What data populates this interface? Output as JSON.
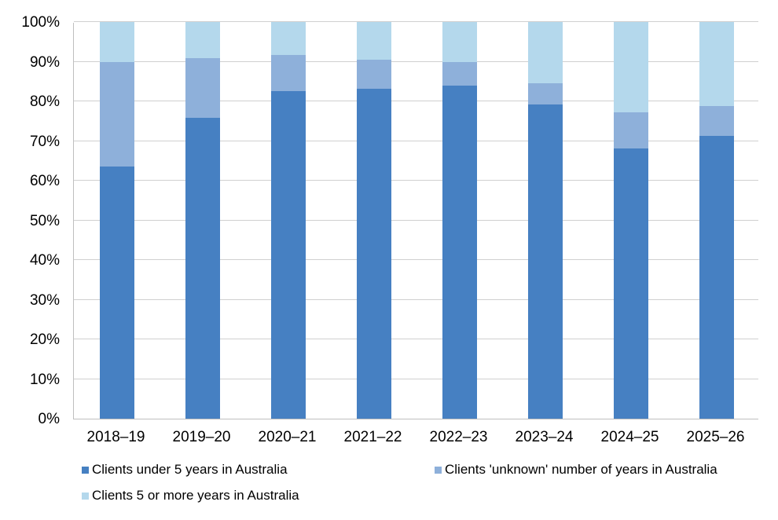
{
  "chart_data": {
    "type": "bar",
    "stacked": true,
    "title": "",
    "xlabel": "",
    "ylabel": "",
    "ylim": [
      0,
      100
    ],
    "y_ticks": [
      "0%",
      "10%",
      "20%",
      "30%",
      "40%",
      "50%",
      "60%",
      "70%",
      "80%",
      "90%",
      "100%"
    ],
    "grid": true,
    "legend_position": "bottom",
    "categories": [
      "2018–19",
      "2019–20",
      "2020–21",
      "2021–22",
      "2022–23",
      "2023–24",
      "2024–25",
      "2025–26"
    ],
    "series": [
      {
        "name": "Clients under 5 years in Australia",
        "color": "#4680c2",
        "values": [
          63.6,
          75.8,
          82.6,
          83.2,
          84.0,
          79.2,
          68.1,
          71.3
        ]
      },
      {
        "name": "Clients 'unknown' number of years in Australia",
        "color": "#8eb0da",
        "values": [
          26.4,
          15.1,
          9.1,
          7.3,
          5.9,
          5.4,
          9.1,
          7.5
        ]
      },
      {
        "name": "Clients 5 or more years in Australia",
        "color": "#b4d8ec",
        "values": [
          10.0,
          9.1,
          8.3,
          9.5,
          10.1,
          15.4,
          22.8,
          21.2
        ]
      }
    ]
  }
}
